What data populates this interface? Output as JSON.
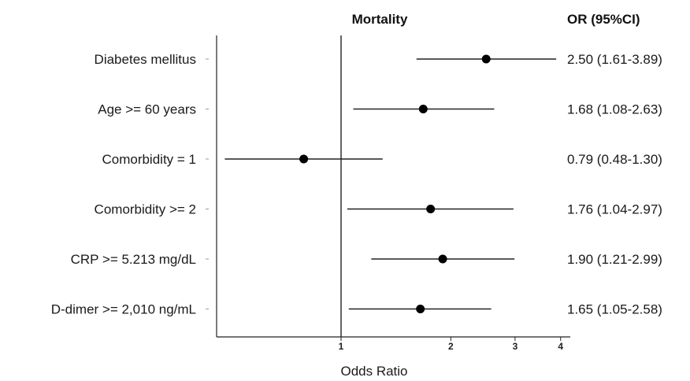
{
  "chart_data": {
    "type": "forest",
    "title": "Mortality",
    "ci_header": "OR (95%CI)",
    "xlabel": "Odds Ratio",
    "x_scale": "log",
    "xlim": [
      0.5,
      4.15
    ],
    "xticks": [
      1,
      2,
      3,
      4
    ],
    "reference_line": 1,
    "rows": [
      {
        "label": "Diabetes mellitus",
        "or": 2.5,
        "lo": 1.61,
        "hi": 3.89,
        "text": "2.50 (1.61-3.89)"
      },
      {
        "label": "Age >= 60 years",
        "or": 1.68,
        "lo": 1.08,
        "hi": 2.63,
        "text": "1.68 (1.08-2.63)"
      },
      {
        "label": "Comorbidity = 1",
        "or": 0.79,
        "lo": 0.48,
        "hi": 1.3,
        "text": "0.79 (0.48-1.30)"
      },
      {
        "label": "Comorbidity >= 2",
        "or": 1.76,
        "lo": 1.04,
        "hi": 2.97,
        "text": "1.76 (1.04-2.97)"
      },
      {
        "label": "CRP >= 5.213 mg/dL",
        "or": 1.9,
        "lo": 1.21,
        "hi": 2.99,
        "text": "1.90 (1.21-2.99)"
      },
      {
        "label": "D-dimer >= 2,010 ng/mL",
        "or": 1.65,
        "lo": 1.05,
        "hi": 2.58,
        "text": "1.65 (1.05-2.58)"
      }
    ]
  }
}
